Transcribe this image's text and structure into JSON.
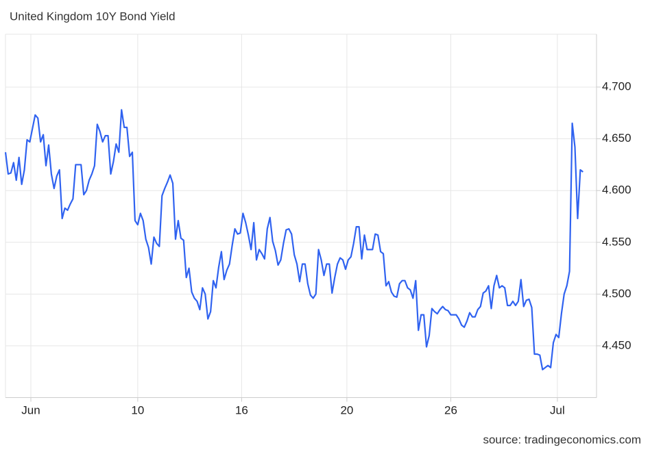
{
  "chart_data": {
    "type": "line",
    "title": "United Kingdom 10Y Bond Yield",
    "source": "source: tradingeconomics.com",
    "xlim": [
      0,
      219
    ],
    "xticks": [
      {
        "value": 9.4,
        "label": "Jun"
      },
      {
        "value": 49,
        "label": "10"
      },
      {
        "value": 87.5,
        "label": "16"
      },
      {
        "value": 126.5,
        "label": "20"
      },
      {
        "value": 165,
        "label": "26"
      },
      {
        "value": 204.5,
        "label": "Jul"
      }
    ],
    "ylim": [
      4.4,
      4.75
    ],
    "yticks": [
      {
        "value": 4.45,
        "label": "4.450"
      },
      {
        "value": 4.5,
        "label": "4.500"
      },
      {
        "value": 4.55,
        "label": "4.550"
      },
      {
        "value": 4.6,
        "label": "4.600"
      },
      {
        "value": 4.65,
        "label": "4.650"
      },
      {
        "value": 4.7,
        "label": "4.700"
      }
    ],
    "grid": true,
    "series": [
      {
        "color": "#2f62f0",
        "values": [
          4.637,
          4.616,
          4.617,
          4.627,
          4.61,
          4.632,
          4.606,
          4.62,
          4.649,
          4.647,
          4.66,
          4.673,
          4.67,
          4.647,
          4.654,
          4.624,
          4.644,
          4.616,
          4.602,
          4.614,
          4.62,
          4.573,
          4.583,
          4.581,
          4.587,
          4.592,
          4.625,
          4.625,
          4.625,
          4.596,
          4.6,
          4.61,
          4.616,
          4.624,
          4.664,
          4.657,
          4.647,
          4.653,
          4.653,
          4.616,
          4.628,
          4.645,
          4.637,
          4.678,
          4.661,
          4.661,
          4.633,
          4.637,
          4.571,
          4.567,
          4.578,
          4.571,
          4.553,
          4.545,
          4.529,
          4.555,
          4.549,
          4.546,
          4.595,
          4.602,
          4.608,
          4.615,
          4.607,
          4.553,
          4.571,
          4.554,
          4.552,
          4.516,
          4.525,
          4.502,
          4.496,
          4.493,
          4.485,
          4.506,
          4.5,
          4.476,
          4.483,
          4.513,
          4.506,
          4.526,
          4.541,
          4.514,
          4.523,
          4.529,
          4.547,
          4.563,
          4.558,
          4.559,
          4.578,
          4.569,
          4.557,
          4.543,
          4.569,
          4.533,
          4.543,
          4.539,
          4.534,
          4.563,
          4.574,
          4.551,
          4.542,
          4.528,
          4.533,
          4.549,
          4.562,
          4.563,
          4.558,
          4.538,
          4.529,
          4.512,
          4.529,
          4.529,
          4.51,
          4.499,
          4.496,
          4.5,
          4.543,
          4.533,
          4.518,
          4.529,
          4.529,
          4.501,
          4.516,
          4.529,
          4.535,
          4.533,
          4.524,
          4.533,
          4.536,
          4.549,
          4.565,
          4.565,
          4.534,
          4.557,
          4.543,
          4.543,
          4.543,
          4.558,
          4.557,
          4.541,
          4.539,
          4.508,
          4.512,
          4.502,
          4.498,
          4.497,
          4.51,
          4.513,
          4.513,
          4.506,
          4.504,
          4.496,
          4.513,
          4.465,
          4.48,
          4.48,
          4.449,
          4.46,
          4.486,
          4.483,
          4.481,
          4.485,
          4.488,
          4.485,
          4.484,
          4.48,
          4.48,
          4.48,
          4.476,
          4.47,
          4.468,
          4.474,
          4.482,
          4.478,
          4.478,
          4.485,
          4.488,
          4.501,
          4.503,
          4.508,
          4.486,
          4.508,
          4.518,
          4.506,
          4.508,
          4.506,
          4.489,
          4.489,
          4.493,
          4.489,
          4.493,
          4.514,
          4.488,
          4.494,
          4.495,
          4.487,
          4.442,
          4.442,
          4.441,
          4.427,
          4.429,
          4.431,
          4.429,
          4.453,
          4.461,
          4.458,
          4.481,
          4.5,
          4.508,
          4.522,
          4.665,
          4.642,
          4.573,
          4.62,
          4.618
        ]
      }
    ]
  }
}
